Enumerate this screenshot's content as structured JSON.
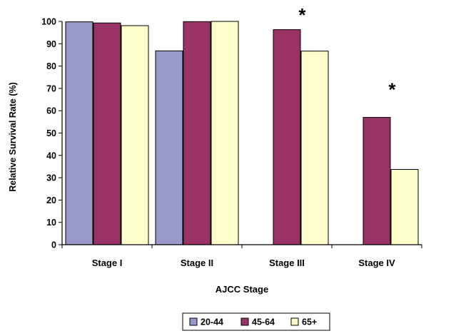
{
  "chart_data": {
    "type": "bar",
    "title": "",
    "xlabel": "AJCC Stage",
    "ylabel": "Relative Survival Rate (%)",
    "ylim": [
      0,
      100
    ],
    "yticks": [
      "0",
      "10",
      "20",
      "30",
      "40",
      "50",
      "60",
      "70",
      "80",
      "90",
      "100"
    ],
    "categories": [
      "Stage I",
      "Stage II",
      "Stage III",
      "Stage IV"
    ],
    "series": [
      {
        "name": "20-44",
        "color": "#9999cc",
        "values": [
          99.8,
          86.8,
          null,
          null
        ]
      },
      {
        "name": "45-64",
        "color": "#993366",
        "values": [
          99.3,
          99.9,
          96.3,
          57.0
        ]
      },
      {
        "name": "65+",
        "color": "#ffffcc",
        "values": [
          98.1,
          100.0,
          86.7,
          33.7
        ]
      }
    ],
    "annotations": [
      {
        "text": "*",
        "category": "Stage III"
      },
      {
        "text": "*",
        "category": "Stage IV"
      }
    ],
    "grid": false,
    "legend_position": "bottom"
  }
}
